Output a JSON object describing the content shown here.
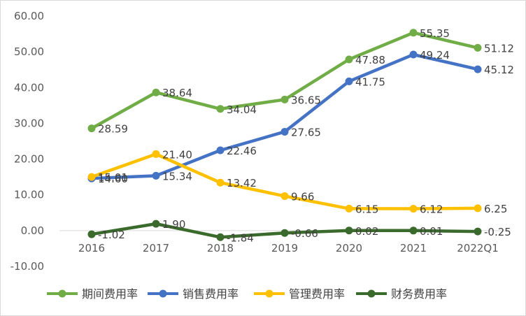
{
  "chart_data": {
    "type": "line",
    "categories": [
      "2016",
      "2017",
      "2018",
      "2019",
      "2020",
      "2021",
      "2022Q1"
    ],
    "series": [
      {
        "name": "期间费用率",
        "color": "#70ad47",
        "values": [
          28.59,
          38.64,
          34.04,
          36.65,
          47.88,
          55.35,
          51.12
        ],
        "labels": [
          "28.59",
          "38.64",
          "34.04",
          "36.65",
          "47.88",
          "55.35",
          "51.12"
        ]
      },
      {
        "name": "销售费用率",
        "color": "#4472c4",
        "values": [
          14.6,
          15.34,
          22.46,
          27.65,
          41.75,
          49.24,
          45.12
        ],
        "labels": [
          "14.60",
          "15.34",
          "22.46",
          "27.65",
          "41.75",
          "49.24",
          "45.12"
        ]
      },
      {
        "name": "管理费用率",
        "color": "#ffc000",
        "values": [
          15.01,
          21.4,
          13.42,
          9.66,
          6.15,
          6.12,
          6.25
        ],
        "labels": [
          "15.01",
          "21.40",
          "13.42",
          "9.66",
          "6.15",
          "6.12",
          "6.25"
        ]
      },
      {
        "name": "财务费用率",
        "color": "#3a6b2c",
        "values": [
          -1.02,
          1.9,
          -1.84,
          -0.66,
          0.02,
          0.01,
          -0.25
        ],
        "labels": [
          "-1.02",
          "1.90",
          "-1.84",
          "-0.66",
          "0.02",
          "0.01",
          "-0.25"
        ]
      }
    ],
    "y_ticks": [
      "60.00",
      "50.00",
      "40.00",
      "30.00",
      "20.00",
      "10.00",
      "0.00",
      "-10.00"
    ],
    "ylim": [
      -10,
      60
    ],
    "grid": false,
    "legend": "bottom",
    "title": "",
    "xlabel": "",
    "ylabel": ""
  }
}
